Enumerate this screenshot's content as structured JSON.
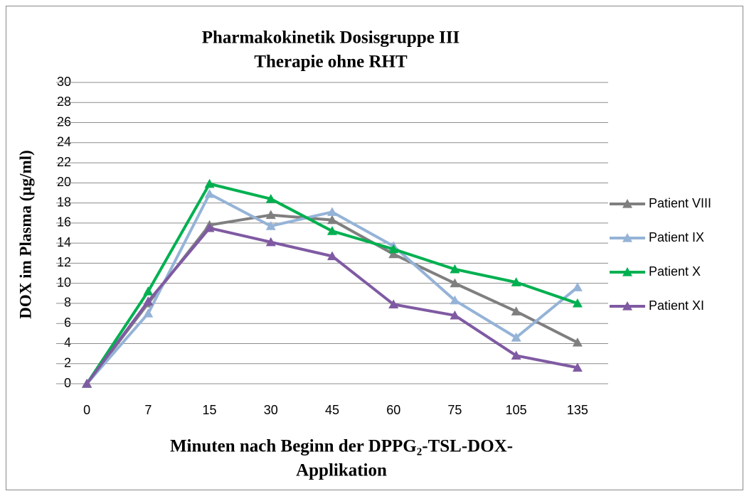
{
  "chart_data": {
    "type": "line",
    "title": "Pharmakokinetik Dosisgruppe III",
    "subtitle": "Therapie ohne RHT",
    "xlabel": [
      "Minuten nach Beginn der DPPG₂-TSL-DOX-",
      "Applikation"
    ],
    "ylabel": "DOX im Plasma (µg/ml)",
    "categories": [
      "0",
      "7",
      "15",
      "30",
      "45",
      "60",
      "75",
      "105",
      "135"
    ],
    "series": [
      {
        "name": "Patient VIII",
        "color": "#7f7f7f",
        "values": [
          0,
          8,
          15.8,
          16.8,
          16.3,
          12.9,
          10,
          7.2,
          4.1
        ]
      },
      {
        "name": "Patient IX",
        "color": "#95b3d7",
        "values": [
          0,
          7,
          18.9,
          15.7,
          17.1,
          13.7,
          8.3,
          4.6,
          9.6
        ]
      },
      {
        "name": "Patient X",
        "color": "#00b050",
        "values": [
          0,
          9.2,
          19.9,
          18.4,
          15.2,
          13.4,
          11.4,
          10.1,
          8
        ]
      },
      {
        "name": "Patient XI",
        "color": "#7f5aa2",
        "values": [
          0,
          8.2,
          15.5,
          14.1,
          12.7,
          7.9,
          6.8,
          2.8,
          1.6
        ]
      }
    ],
    "ylim": [
      0,
      30
    ],
    "yticks": [
      0,
      2,
      4,
      6,
      8,
      10,
      12,
      14,
      16,
      18,
      20,
      22,
      24,
      26,
      28,
      30
    ],
    "grid": true,
    "legend": "right"
  }
}
